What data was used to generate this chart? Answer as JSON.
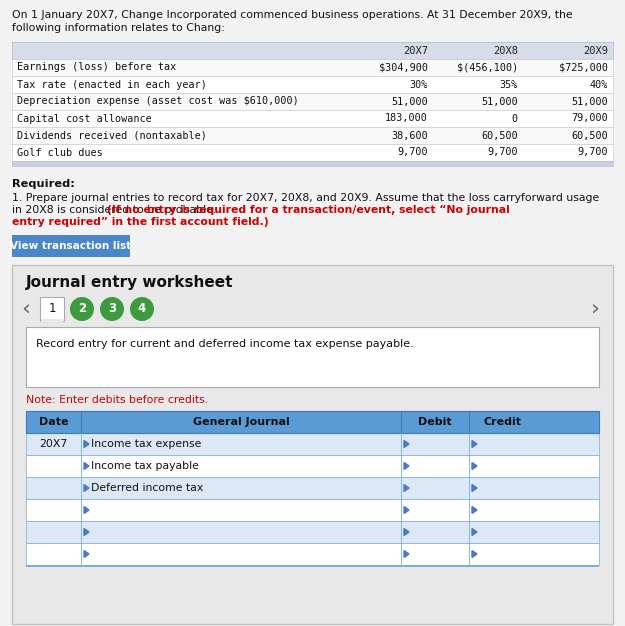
{
  "bg_color": "#f2f2f2",
  "white": "#ffffff",
  "header_intro_line1": "On 1 January 20X7, Change Incorporated commenced business operations. At 31 December 20X9, the",
  "header_intro_line2": "following information relates to Chang:",
  "table1_header": [
    "",
    "20X7",
    "20X8",
    "20X9"
  ],
  "table1_rows": [
    [
      "Earnings (loss) before tax",
      "$304,900",
      "$(456,100)",
      "$725,000"
    ],
    [
      "Tax rate (enacted in each year)",
      "30%",
      "35%",
      "40%"
    ],
    [
      "Depreciation expense (asset cost was $610,000)",
      "51,000",
      "51,000",
      "51,000"
    ],
    [
      "Capital cost allowance",
      "183,000",
      "0",
      "79,000"
    ],
    [
      "Dividends received (nontaxable)",
      "38,600",
      "60,500",
      "60,500"
    ],
    [
      "Golf club dues",
      "9,700",
      "9,700",
      "9,700"
    ]
  ],
  "table1_header_bg": "#d6dce8",
  "table1_row_bg_even": "#f8f8f8",
  "table1_row_bg_odd": "#ffffff",
  "table1_footer_bg": "#c8d0e0",
  "required_bold": "Required:",
  "required_normal": "1. Prepare journal entries to record tax for 20X7, 20X8, and 20X9. Assume that the loss carryforward usage",
  "required_normal2": "in 20X8 is considered to be probable. ",
  "required_red": "(If no entry is required for a transaction/event, select “No journal",
  "required_red2": "entry required” in the first account field.)",
  "btn_color": "#4a86c8",
  "btn_text": "View transaction list",
  "journal_box_bg": "#e8e8e8",
  "journal_title": "Journal entry worksheet",
  "tab_labels": [
    "1",
    "2",
    "3",
    "4"
  ],
  "tab_inactive_color": "#3d9a3d",
  "record_text": "Record entry for current and deferred income tax expense payable.",
  "note_text": "Note: Enter debits before credits.",
  "note_color": "#cc0000",
  "journal_col_headers": [
    "Date",
    "General Journal",
    "Debit",
    "Credit"
  ],
  "journal_col_header_bg": "#5b9bd5",
  "journal_col_header_border": "#3a7abf",
  "journal_rows": [
    [
      "20X7",
      "Income tax expense",
      "",
      ""
    ],
    [
      "",
      "Income tax payable",
      "",
      ""
    ],
    [
      "",
      "Deferred income tax",
      "",
      ""
    ],
    [
      "",
      "",
      "",
      ""
    ],
    [
      "",
      "",
      "",
      ""
    ],
    [
      "",
      "",
      "",
      ""
    ]
  ],
  "journal_row_bg_blue": "#dce8f5",
  "journal_row_bg_white": "#ffffff",
  "journal_border_blue": "#7aadd4",
  "nav_color": "#666666",
  "triangle_color": "#4a7abf"
}
